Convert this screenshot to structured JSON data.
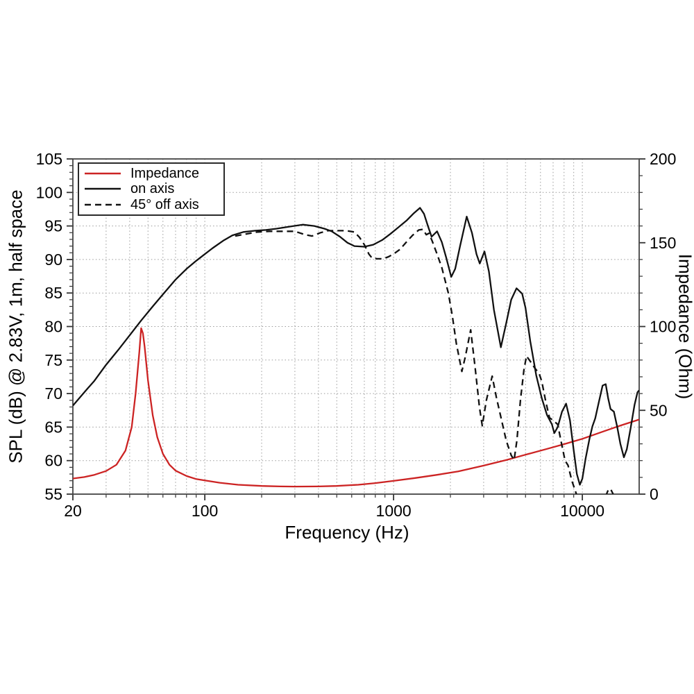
{
  "chart_data": {
    "type": "line",
    "title": "",
    "xlabel": "Frequency (Hz)",
    "ylabel_left": "SPL (dB) @ 2.83V, 1m, half space",
    "ylabel_right": "Impedance (Ohm)",
    "x_scale": "log",
    "x_range": [
      20,
      20000
    ],
    "y_left_range": [
      55,
      105
    ],
    "y_right_range": [
      0,
      200
    ],
    "x_major_ticks": [
      20,
      100,
      1000,
      10000
    ],
    "x_minor_ticks": [
      30,
      40,
      50,
      60,
      70,
      80,
      90,
      200,
      300,
      400,
      500,
      600,
      700,
      800,
      900,
      2000,
      3000,
      4000,
      5000,
      6000,
      7000,
      8000,
      9000
    ],
    "y_left_major_ticks": [
      55,
      60,
      65,
      70,
      75,
      80,
      85,
      90,
      95,
      100,
      105
    ],
    "y_left_minor_step": 1,
    "y_right_major_ticks": [
      0,
      50,
      100,
      150,
      200
    ],
    "y_right_minor_step": 10,
    "grid_v_hz": [
      30,
      40,
      50,
      60,
      70,
      80,
      90,
      100,
      200,
      300,
      400,
      500,
      600,
      700,
      800,
      900,
      1000,
      2000,
      3000,
      4000,
      5000,
      6000,
      7000,
      8000,
      9000,
      10000
    ],
    "grid_h_db": [
      60,
      65,
      70,
      75,
      80,
      85,
      90,
      95,
      100
    ],
    "grid_on": true,
    "legend_position": "top-left",
    "colors": {
      "impedance": "#cc2323",
      "spl": "#111111",
      "grid": "#999999",
      "frame": "#444444"
    },
    "series": [
      {
        "name": "Impedance",
        "axis": "right",
        "style": "solid",
        "color": "#cc2323",
        "points": [
          [
            20,
            9.3
          ],
          [
            23,
            10.2
          ],
          [
            26,
            11.5
          ],
          [
            30,
            13.8
          ],
          [
            34,
            17.5
          ],
          [
            38,
            26
          ],
          [
            41,
            40
          ],
          [
            43,
            60
          ],
          [
            45,
            85
          ],
          [
            46,
            99
          ],
          [
            47,
            96
          ],
          [
            48,
            88
          ],
          [
            50,
            68
          ],
          [
            53,
            47
          ],
          [
            56,
            34
          ],
          [
            60,
            24
          ],
          [
            65,
            17.5
          ],
          [
            70,
            14
          ],
          [
            80,
            10.8
          ],
          [
            90,
            9
          ],
          [
            100,
            8.2
          ],
          [
            120,
            6.8
          ],
          [
            150,
            5.6
          ],
          [
            200,
            4.9
          ],
          [
            250,
            4.6
          ],
          [
            300,
            4.5
          ],
          [
            400,
            4.6
          ],
          [
            500,
            4.9
          ],
          [
            650,
            5.6
          ],
          [
            800,
            6.6
          ],
          [
            1000,
            7.9
          ],
          [
            1300,
            9.6
          ],
          [
            1700,
            11.5
          ],
          [
            2200,
            13.6
          ],
          [
            3000,
            17
          ],
          [
            4000,
            20.5
          ],
          [
            5000,
            23.5
          ],
          [
            6500,
            27
          ],
          [
            8000,
            29.8
          ],
          [
            10000,
            33
          ],
          [
            13000,
            37.5
          ],
          [
            16000,
            41
          ],
          [
            20000,
            44.5
          ]
        ]
      },
      {
        "name": "on axis",
        "axis": "left",
        "style": "solid",
        "color": "#111111",
        "points": [
          [
            20,
            68.2
          ],
          [
            23,
            70.2
          ],
          [
            26,
            71.9
          ],
          [
            30,
            74.3
          ],
          [
            35,
            76.6
          ],
          [
            40,
            78.7
          ],
          [
            46,
            80.9
          ],
          [
            53,
            83
          ],
          [
            60,
            84.8
          ],
          [
            70,
            87
          ],
          [
            80,
            88.6
          ],
          [
            90,
            89.8
          ],
          [
            100,
            90.8
          ],
          [
            110,
            91.7
          ],
          [
            125,
            92.8
          ],
          [
            140,
            93.6
          ],
          [
            160,
            94.1
          ],
          [
            185,
            94.3
          ],
          [
            210,
            94.4
          ],
          [
            240,
            94.6
          ],
          [
            280,
            94.9
          ],
          [
            330,
            95.2
          ],
          [
            380,
            95.0
          ],
          [
            430,
            94.6
          ],
          [
            470,
            94.2
          ],
          [
            520,
            93.4
          ],
          [
            570,
            92.5
          ],
          [
            620,
            92.0
          ],
          [
            700,
            91.9
          ],
          [
            780,
            92.2
          ],
          [
            870,
            92.9
          ],
          [
            960,
            93.8
          ],
          [
            1050,
            94.7
          ],
          [
            1170,
            95.8
          ],
          [
            1280,
            96.9
          ],
          [
            1380,
            97.7
          ],
          [
            1450,
            96.8
          ],
          [
            1520,
            95
          ],
          [
            1590,
            93.4
          ],
          [
            1700,
            94.2
          ],
          [
            1800,
            92.6
          ],
          [
            1900,
            90.3
          ],
          [
            2020,
            87.4
          ],
          [
            2120,
            88.6
          ],
          [
            2250,
            92
          ],
          [
            2440,
            96.4
          ],
          [
            2600,
            94
          ],
          [
            2750,
            90.8
          ],
          [
            2860,
            89.4
          ],
          [
            3030,
            91.2
          ],
          [
            3200,
            88.2
          ],
          [
            3400,
            82.5
          ],
          [
            3700,
            76.9
          ],
          [
            3950,
            80.5
          ],
          [
            4200,
            84
          ],
          [
            4480,
            85.7
          ],
          [
            4800,
            84.9
          ],
          [
            5000,
            82.8
          ],
          [
            5300,
            77.8
          ],
          [
            5700,
            72.7
          ],
          [
            6100,
            69.3
          ],
          [
            6500,
            66.8
          ],
          [
            6900,
            65.4
          ],
          [
            7100,
            64.1
          ],
          [
            7400,
            65
          ],
          [
            7800,
            67.3
          ],
          [
            8200,
            68.5
          ],
          [
            8600,
            66
          ],
          [
            9000,
            61.5
          ],
          [
            9350,
            58
          ],
          [
            9700,
            56.4
          ],
          [
            10000,
            57.3
          ],
          [
            10400,
            60.3
          ],
          [
            10900,
            63.2
          ],
          [
            11300,
            65.1
          ],
          [
            11700,
            66.3
          ],
          [
            12200,
            68.6
          ],
          [
            12800,
            71.2
          ],
          [
            13300,
            71.4
          ],
          [
            13700,
            69.3
          ],
          [
            14100,
            67.7
          ],
          [
            14700,
            67.3
          ],
          [
            15300,
            65
          ],
          [
            15900,
            62.5
          ],
          [
            16600,
            60.5
          ],
          [
            17200,
            61.7
          ],
          [
            18000,
            64.8
          ],
          [
            18900,
            68.3
          ],
          [
            19600,
            70.2
          ],
          [
            20000,
            70.5
          ]
        ]
      },
      {
        "name": "45° off axis",
        "axis": "left",
        "style": "dashed",
        "color": "#111111",
        "segments": [
          [
            [
              145,
              93.5
            ],
            [
              165,
              93.8
            ],
            [
              190,
              94.1
            ],
            [
              220,
              94.2
            ],
            [
              260,
              94.2
            ],
            [
              300,
              94.2
            ],
            [
              340,
              93.7
            ],
            [
              370,
              93.5
            ],
            [
              410,
              94
            ],
            [
              450,
              94.3
            ],
            [
              500,
              94.3
            ],
            [
              560,
              94.3
            ],
            [
              620,
              94.1
            ],
            [
              660,
              93.3
            ],
            [
              700,
              92.2
            ],
            [
              740,
              90.8
            ],
            [
              770,
              90.2
            ],
            [
              820,
              90.1
            ],
            [
              880,
              90.1
            ],
            [
              940,
              90.4
            ],
            [
              1010,
              90.9
            ],
            [
              1080,
              91.5
            ],
            [
              1160,
              92.5
            ],
            [
              1260,
              93.6
            ],
            [
              1360,
              94.4
            ],
            [
              1430,
              94.5
            ],
            [
              1490,
              93.7
            ],
            [
              1540,
              93.9
            ],
            [
              1600,
              92.8
            ],
            [
              1700,
              90.8
            ],
            [
              1800,
              88.8
            ],
            [
              1950,
              85
            ],
            [
              2050,
              81.5
            ],
            [
              2150,
              77.5
            ],
            [
              2300,
              73.3
            ],
            [
              2400,
              75.5
            ],
            [
              2560,
              79.5
            ],
            [
              2700,
              74
            ],
            [
              2850,
              68
            ],
            [
              2950,
              65.2
            ],
            [
              3100,
              69
            ],
            [
              3330,
              72.6
            ],
            [
              3500,
              69.5
            ],
            [
              3700,
              66.5
            ],
            [
              3950,
              63
            ],
            [
              4200,
              60.8
            ],
            [
              4350,
              60.1
            ],
            [
              4500,
              63
            ],
            [
              4700,
              69
            ],
            [
              4900,
              73.5
            ],
            [
              5060,
              75.6
            ],
            [
              5300,
              74.8
            ],
            [
              5600,
              73.8
            ],
            [
              5900,
              73
            ],
            [
              6100,
              71.8
            ],
            [
              6400,
              68.8
            ],
            [
              6700,
              66.4
            ],
            [
              7000,
              66
            ],
            [
              7400,
              65.4
            ],
            [
              7700,
              63
            ],
            [
              8100,
              60
            ],
            [
              8400,
              59.3
            ],
            [
              8800,
              57
            ],
            [
              9100,
              55.8
            ],
            [
              9400,
              54.6
            ]
          ],
          [
            [
              13300,
              54.7
            ],
            [
              13700,
              55.6
            ],
            [
              14100,
              55.8
            ],
            [
              14500,
              55.1
            ],
            [
              14800,
              54.6
            ]
          ]
        ]
      }
    ],
    "legend": {
      "items": [
        "Impedance",
        "on axis",
        "45° off axis"
      ]
    }
  }
}
